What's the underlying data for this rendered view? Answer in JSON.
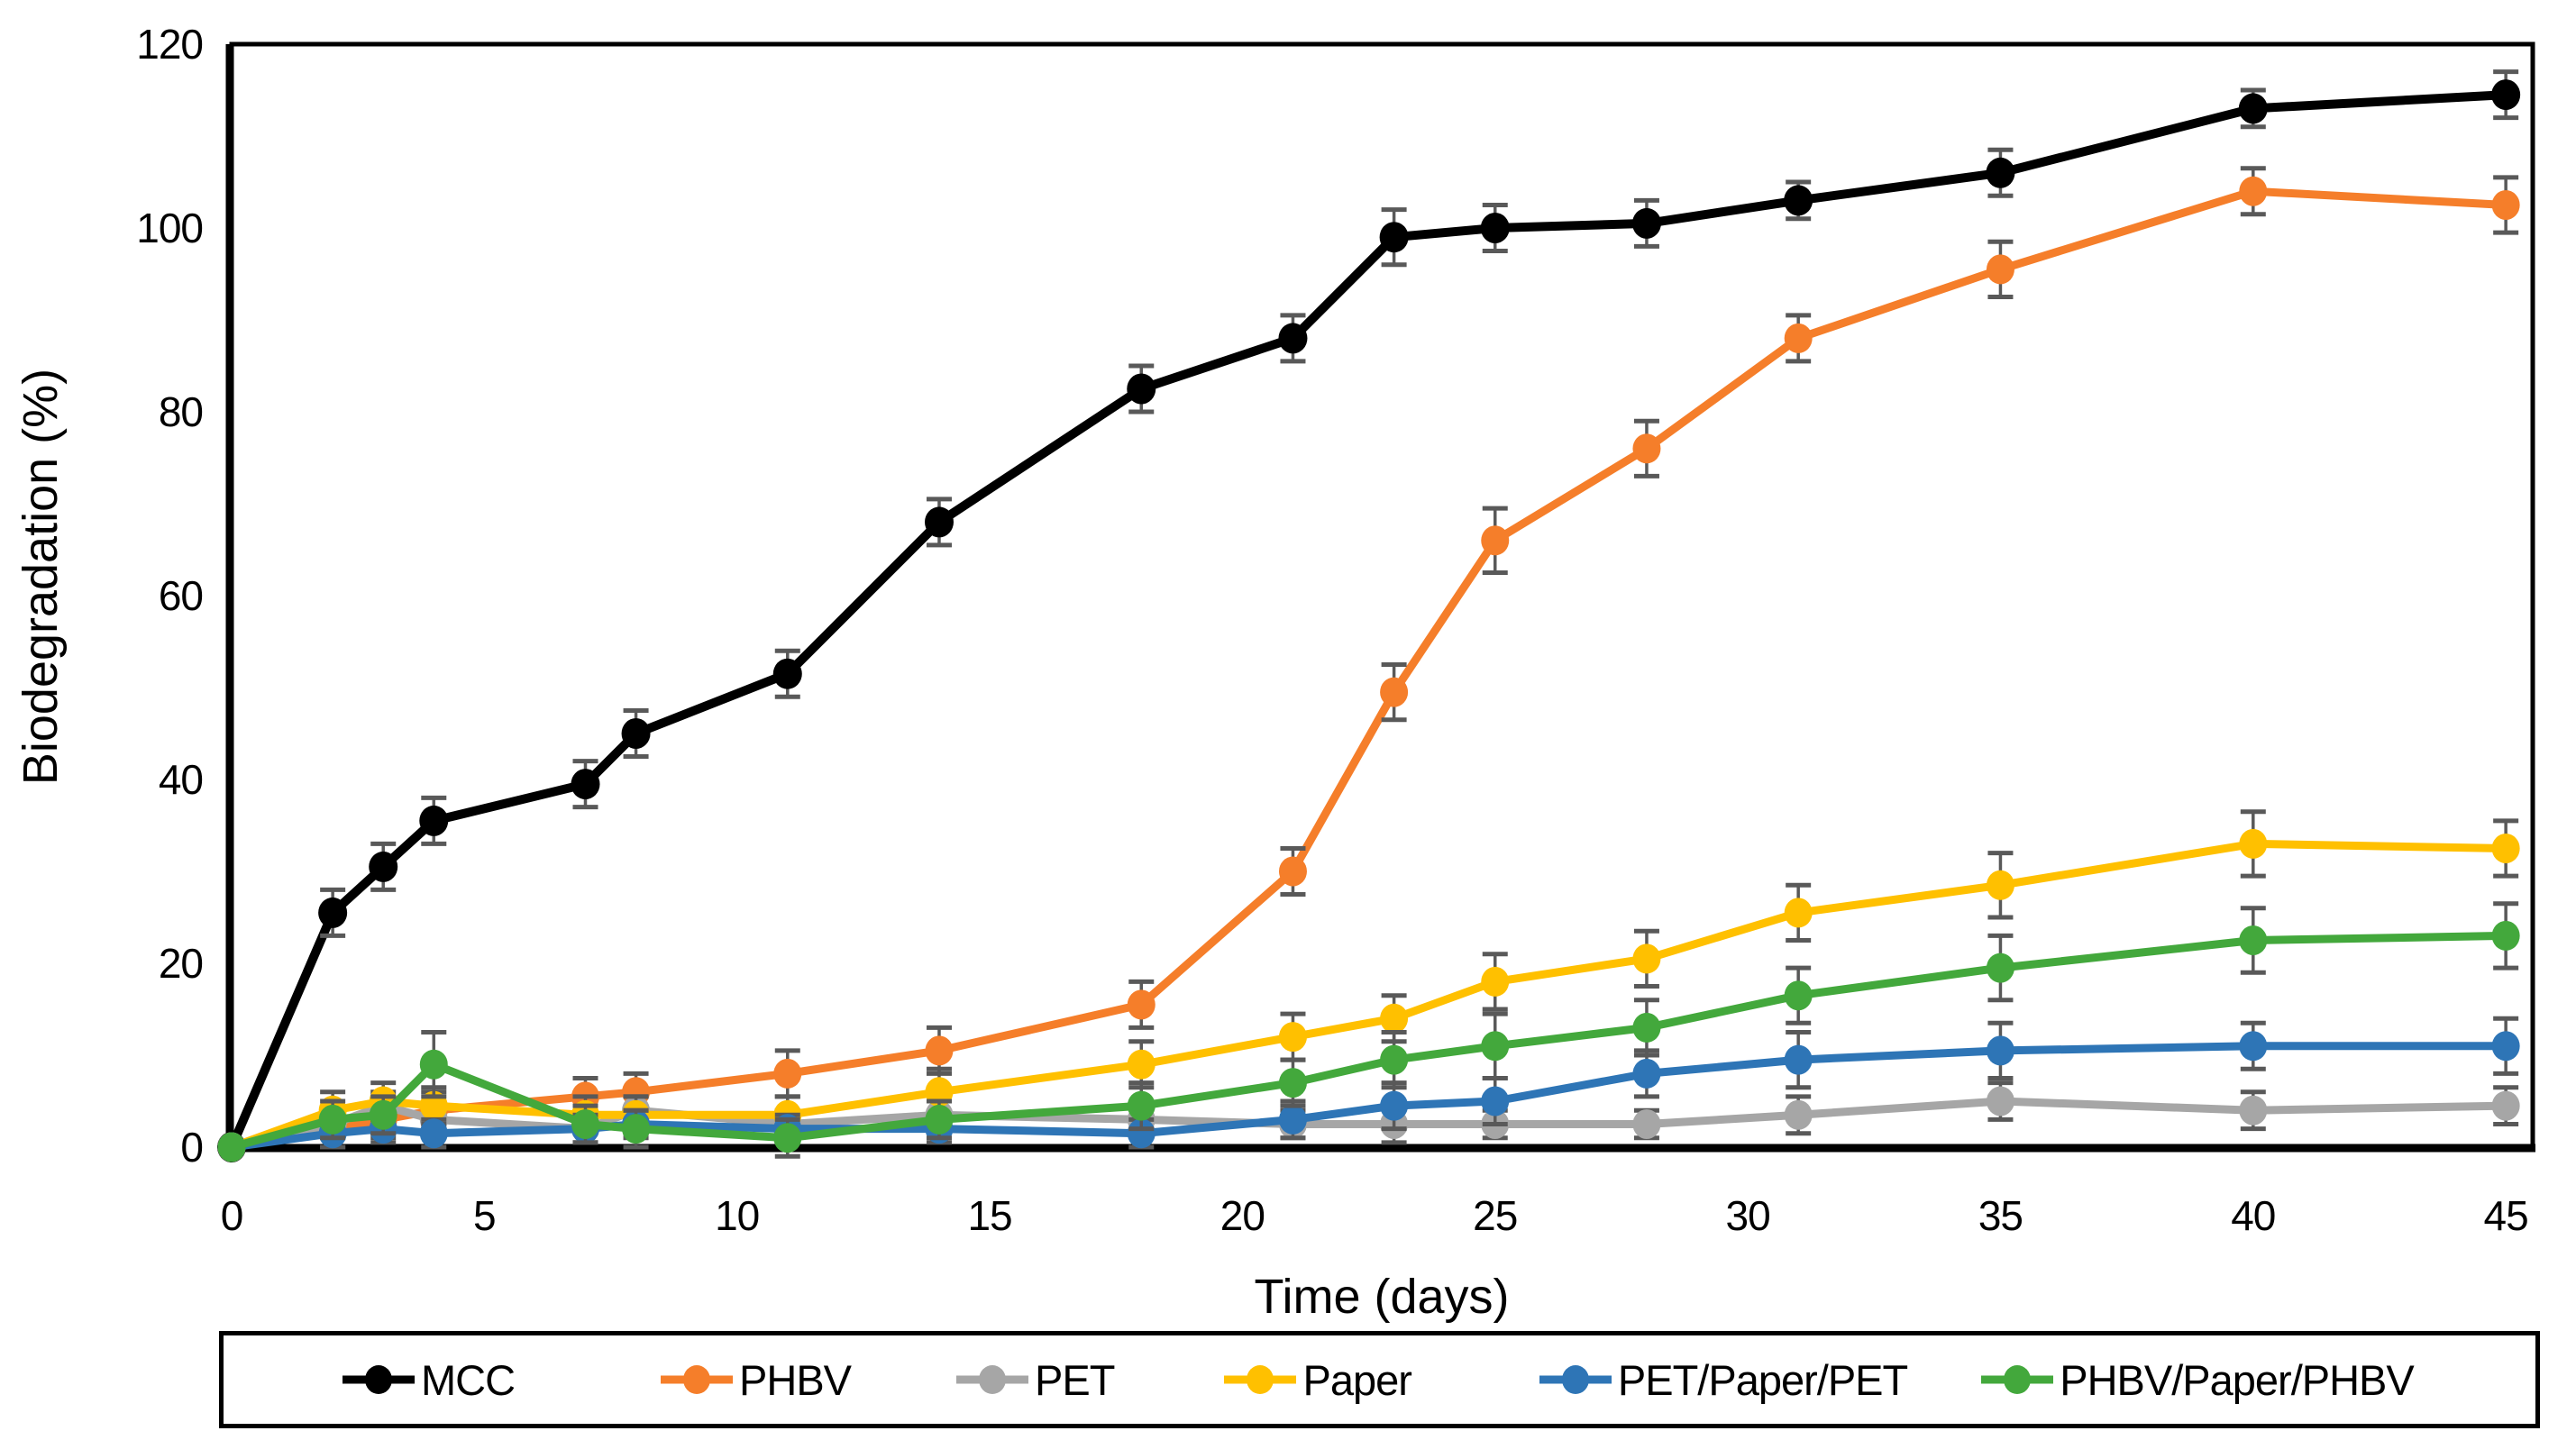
{
  "chart_data": {
    "type": "line",
    "title": "",
    "xlabel": "Time (days)",
    "ylabel": "Biodegradation (%)",
    "xlim": [
      0,
      45.5
    ],
    "ylim": [
      0,
      120
    ],
    "xticks": [
      0,
      5,
      10,
      15,
      20,
      25,
      30,
      35,
      40,
      45
    ],
    "yticks": [
      0,
      20,
      40,
      60,
      80,
      100,
      120
    ],
    "grid": false,
    "legend_position": "bottom-box",
    "error_bar_color": "#595959",
    "x": [
      0,
      2,
      3,
      4,
      7,
      8,
      11,
      14,
      18,
      21,
      23,
      25,
      28,
      31,
      35,
      40,
      45
    ],
    "series": [
      {
        "name": "MCC",
        "color": "#000000",
        "marker": "circle",
        "values": [
          0,
          25.5,
          30.5,
          35.5,
          39.5,
          45,
          51.5,
          68,
          82.5,
          88,
          99,
          100,
          100.5,
          103,
          106,
          113,
          114.5
        ],
        "errors": [
          0,
          2.5,
          2.5,
          2.5,
          2.5,
          2.5,
          2.5,
          2.5,
          2.5,
          2.5,
          3,
          2.5,
          2.5,
          2,
          2.5,
          2,
          2.5
        ]
      },
      {
        "name": "PHBV",
        "color": "#F57E2A",
        "marker": "circle",
        "values": [
          0,
          2,
          3,
          4,
          5.5,
          6,
          8,
          10.5,
          15.5,
          30,
          49.5,
          66,
          76,
          88,
          95.5,
          104,
          102.5
        ],
        "errors": [
          0,
          2,
          2,
          2,
          2,
          2,
          2.5,
          2.5,
          2.5,
          2.5,
          3,
          3.5,
          3,
          2.5,
          3,
          2.5,
          3
        ]
      },
      {
        "name": "PET",
        "color": "#A6A6A6",
        "marker": "circle",
        "values": [
          0,
          2.5,
          4.5,
          3,
          2,
          4,
          2.5,
          3.5,
          3,
          2.5,
          2.5,
          2.5,
          2.5,
          3.5,
          5,
          4,
          4.5
        ],
        "errors": [
          0,
          1.5,
          1.5,
          1.5,
          1.5,
          1.5,
          1.5,
          1.5,
          1.5,
          1.5,
          2,
          1.5,
          1.5,
          2,
          2,
          2,
          2
        ]
      },
      {
        "name": "Paper",
        "color": "#FFC000",
        "marker": "circle",
        "values": [
          0,
          4,
          5,
          4.5,
          3.5,
          3.5,
          3.5,
          6,
          9,
          12,
          14,
          18,
          20.5,
          25.5,
          28.5,
          33,
          32.5
        ],
        "errors": [
          0,
          2,
          2,
          2,
          2,
          2,
          2,
          2.5,
          2.5,
          2.5,
          2.5,
          3,
          3,
          3,
          3.5,
          3.5,
          3
        ]
      },
      {
        "name": "PET/Paper/PET",
        "color": "#2E75B6",
        "marker": "circle",
        "values": [
          0,
          1.5,
          2,
          1.5,
          2,
          2.5,
          2,
          2,
          1.5,
          3,
          4.5,
          5,
          8,
          9.5,
          10.5,
          11,
          11
        ],
        "errors": [
          0,
          1.5,
          1.5,
          1.5,
          1.5,
          1.5,
          1.5,
          1.5,
          1.5,
          2,
          2.5,
          2.5,
          2.5,
          3,
          3,
          2.5,
          3
        ]
      },
      {
        "name": "PHBV/Paper/PHBV",
        "color": "#43A83C",
        "marker": "circle",
        "values": [
          0,
          3,
          3.5,
          9,
          2.5,
          2,
          1,
          3,
          4.5,
          7,
          9.5,
          11,
          13,
          16.5,
          19.5,
          22.5,
          23
        ],
        "errors": [
          0,
          2,
          2,
          3.5,
          2,
          2,
          2,
          2,
          2.5,
          2.5,
          3,
          3.5,
          3,
          3,
          3.5,
          3.5,
          3.5
        ]
      }
    ]
  }
}
